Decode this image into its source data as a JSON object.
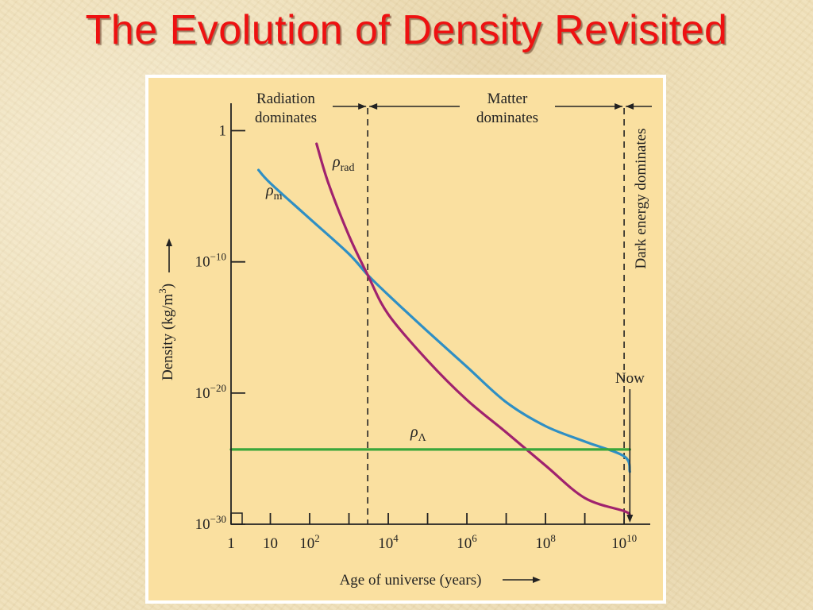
{
  "slide": {
    "title": "The Evolution of Density Revisited"
  },
  "chart_data": {
    "type": "line",
    "x_scale": "log",
    "y_scale": "log",
    "xlabel": "Age of universe (years)",
    "ylabel": "Density (kg/m3)",
    "xlim": [
      1,
      20000000000
    ],
    "ylim": [
      1e-30,
      10.0
    ],
    "x_ticks": [
      {
        "value": 1,
        "base": "1",
        "exp": ""
      },
      {
        "value": 10,
        "base": "10",
        "exp": ""
      },
      {
        "value": 100,
        "base": "10",
        "exp": "2"
      },
      {
        "value": 10000,
        "base": "10",
        "exp": "4"
      },
      {
        "value": 1000000,
        "base": "10",
        "exp": "6"
      },
      {
        "value": 100000000,
        "base": "10",
        "exp": "8"
      },
      {
        "value": 10000000000,
        "base": "10",
        "exp": "10"
      }
    ],
    "x_minor_ticks": [
      1000,
      100000,
      10000000,
      1000000000
    ],
    "y_ticks": [
      {
        "value": 1,
        "base": "1",
        "exp": ""
      },
      {
        "value": 1e-10,
        "base": "10",
        "exp": "−10"
      },
      {
        "value": 1e-20,
        "base": "10",
        "exp": "−20"
      },
      {
        "value": 1e-30,
        "base": "10",
        "exp": "−30"
      }
    ],
    "series": [
      {
        "name": "ρm",
        "sub": "m",
        "color": "#2f8fc4",
        "x": [
          5,
          10,
          100,
          1000,
          3000,
          10000,
          100000,
          1000000,
          10000000,
          100000000,
          1000000000,
          10000000000,
          14000000000
        ],
        "y": [
          0.001,
          0.0001,
          2e-07,
          4e-10,
          1e-11,
          3e-13,
          5e-16,
          1e-18,
          2e-21,
          3e-23,
          2e-24,
          1.5e-25,
          1e-26
        ]
      },
      {
        "name": "ρrad",
        "sub": "rad",
        "color": "#a0226e",
        "x": [
          150,
          300,
          1000,
          3000,
          10000,
          100000,
          1000000,
          10000000,
          100000000,
          1000000000,
          10000000000,
          14000000000
        ],
        "y": [
          0.1,
          0.0001,
          1e-08,
          1e-11,
          1e-14,
          3e-18,
          3e-21,
          1e-23,
          3e-26,
          1e-28,
          1e-29,
          5e-30
        ]
      },
      {
        "name": "ρΛ",
        "sub": "Λ",
        "color": "#3aa63a",
        "x": [
          1,
          14000000000
        ],
        "y": [
          5e-25,
          5e-25
        ]
      }
    ],
    "eras": [
      {
        "label_lines": [
          "Radiation",
          "dominates"
        ]
      },
      {
        "label_lines": [
          "Matter",
          "dominates"
        ]
      },
      {
        "label_lines": [
          "Dark energy dominates"
        ]
      }
    ],
    "boundaries": [
      3000,
      10000000000
    ],
    "now": {
      "label": "Now",
      "x": 14000000000
    }
  }
}
